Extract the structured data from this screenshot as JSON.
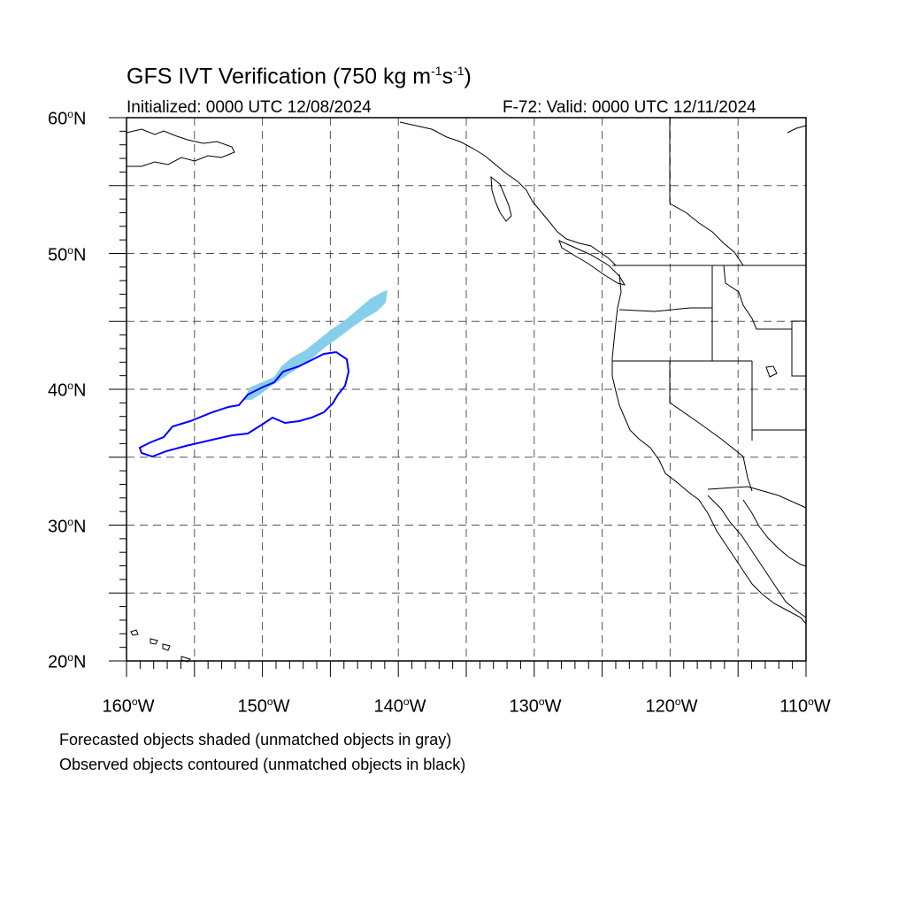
{
  "title": {
    "main": "GFS IVT Verification (750 kg m",
    "sup1": "-1",
    "mid": "s",
    "sup2": "-1",
    "end": ")"
  },
  "initialized": "Initialized: 0000 UTC 12/08/2024",
  "valid": "F-72: Valid: 0000 UTC 12/11/2024",
  "lat_labels": [
    {
      "value": "60",
      "unit": "o",
      "hemi": "N"
    },
    {
      "value": "50",
      "unit": "o",
      "hemi": "N"
    },
    {
      "value": "40",
      "unit": "o",
      "hemi": "N"
    },
    {
      "value": "30",
      "unit": "o",
      "hemi": "N"
    },
    {
      "value": "20",
      "unit": "o",
      "hemi": "N"
    }
  ],
  "lon_labels": [
    {
      "value": "160",
      "unit": "o",
      "hemi": "W"
    },
    {
      "value": "150",
      "unit": "o",
      "hemi": "W"
    },
    {
      "value": "140",
      "unit": "o",
      "hemi": "W"
    },
    {
      "value": "130",
      "unit": "o",
      "hemi": "W"
    },
    {
      "value": "120",
      "unit": "o",
      "hemi": "W"
    },
    {
      "value": "110",
      "unit": "o",
      "hemi": "W"
    }
  ],
  "legend": {
    "line1": "Forecasted objects shaded (unmatched objects in gray)",
    "line2": "Observed objects contoured (unmatched objects in black)"
  },
  "colors": {
    "forecast_fill": "#87ceeb",
    "observed_contour": "#0000ff",
    "grid": "#555555",
    "coast": "#000000"
  },
  "map": {
    "lon_range": [
      -160,
      -110
    ],
    "lat_range": [
      20,
      60
    ],
    "grid_interval_deg": 5
  }
}
